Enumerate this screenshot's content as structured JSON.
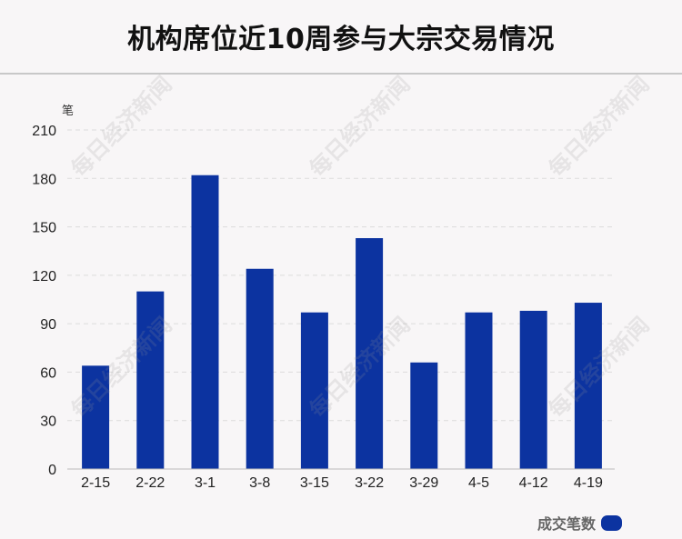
{
  "watermark": "每日经济新闻",
  "chart_data": {
    "type": "bar",
    "title": "机构席位近10周参与大宗交易情况",
    "unit_label": "笔",
    "categories": [
      "2-15",
      "2-22",
      "3-1",
      "3-8",
      "3-15",
      "3-22",
      "3-29",
      "4-5",
      "4-12",
      "4-19"
    ],
    "series": [
      {
        "name": "成交笔数",
        "values": [
          64,
          110,
          182,
          124,
          97,
          143,
          66,
          97,
          98,
          103
        ]
      }
    ],
    "yticks": [
      0,
      30,
      60,
      90,
      120,
      150,
      180,
      210
    ],
    "ylim": [
      0,
      210
    ],
    "grid": true,
    "legend_position": "bottom-right",
    "bar_color": "#0c33a0"
  }
}
